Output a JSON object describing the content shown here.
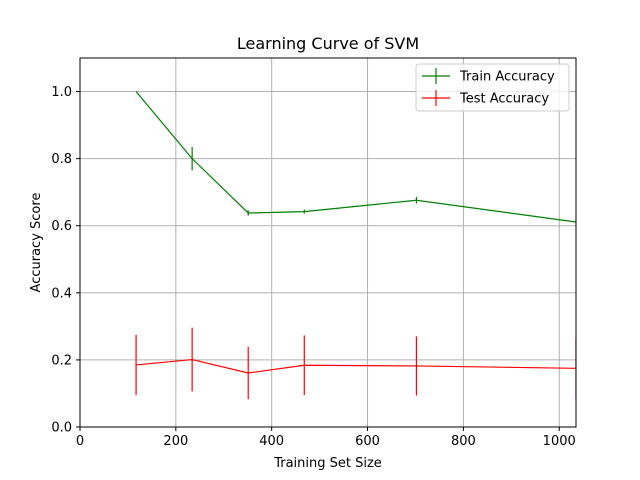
{
  "chart_data": {
    "type": "line",
    "title": "Learning Curve of SVM",
    "xlabel": "Training Set Size",
    "ylabel": "Accuracy Score",
    "xlim": [
      0,
      1035
    ],
    "ylim": [
      0,
      1.1
    ],
    "xticks": [
      0,
      200,
      400,
      600,
      800,
      1000
    ],
    "xtick_labels": [
      "0",
      "200",
      "400",
      "600",
      "800",
      "1000"
    ],
    "yticks": [
      0,
      0.2,
      0.4,
      0.6,
      0.8,
      1.0
    ],
    "ytick_labels": [
      "0.0",
      "0.2",
      "0.4",
      "0.6",
      "0.8",
      "1.0"
    ],
    "grid": true,
    "legend_position": "top-right",
    "x": [
      117,
      234,
      351,
      468,
      702,
      1035
    ],
    "series": [
      {
        "name": "Train Accuracy",
        "color": "#008000",
        "values": [
          1.0,
          0.8,
          0.638,
          0.642,
          0.676,
          0.611
        ],
        "errors": [
          0.0,
          0.035,
          0.008,
          0.006,
          0.01,
          0.0
        ]
      },
      {
        "name": "Test Accuracy",
        "color": "#ff0000",
        "values": [
          0.185,
          0.201,
          0.161,
          0.184,
          0.182,
          0.175
        ],
        "errors": [
          0.09,
          0.095,
          0.078,
          0.089,
          0.088,
          0.09
        ]
      }
    ]
  }
}
